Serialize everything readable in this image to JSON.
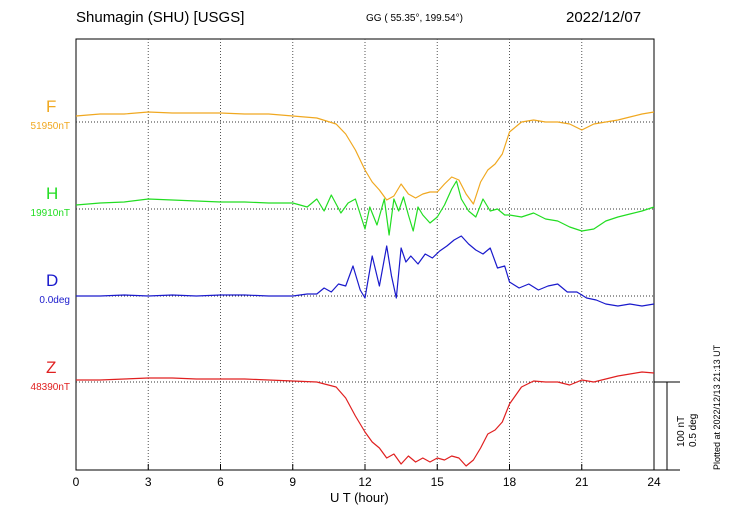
{
  "header": {
    "station": "Shumagin (SHU)  [USGS]",
    "coords": "GG ( 55.35°, 199.54°)",
    "date": "2022/12/07",
    "plotted": "Plotted at 2022/12/13 21:13 UT"
  },
  "scale": {
    "nt": "100 nT",
    "deg": "0.5 deg"
  },
  "chart_data": {
    "type": "line",
    "xlabel": "U T (hour)",
    "xlim": [
      0,
      24
    ],
    "xticks": [
      0,
      3,
      6,
      9,
      12,
      15,
      18,
      21,
      24
    ],
    "grid": true,
    "series": [
      {
        "name": "F",
        "baseline_label": "51950nT",
        "color": "#f0a820",
        "x": [
          0,
          1,
          2,
          3,
          4,
          5,
          6,
          7,
          8,
          9,
          10,
          10.8,
          11.2,
          11.6,
          12,
          12.3,
          12.6,
          12.9,
          13.2,
          13.5,
          13.8,
          14.1,
          14.4,
          14.7,
          15,
          15.3,
          15.6,
          15.9,
          16.2,
          16.5,
          16.8,
          17.1,
          17.4,
          17.7,
          18,
          18.5,
          19,
          19.5,
          20,
          20.5,
          21,
          21.5,
          22,
          22.5,
          23,
          23.5,
          24
        ],
        "values": [
          6,
          8,
          8,
          10,
          9,
          9,
          9,
          8,
          8,
          6,
          4,
          -2,
          -12,
          -28,
          -48,
          -60,
          -68,
          -78,
          -74,
          -62,
          -72,
          -76,
          -72,
          -70,
          -70,
          -62,
          -55,
          -58,
          -72,
          -82,
          -60,
          -48,
          -42,
          -32,
          -10,
          0,
          2,
          0,
          0,
          -2,
          -8,
          -2,
          0,
          2,
          5,
          8,
          10
        ]
      },
      {
        "name": "H",
        "baseline_label": "19910nT",
        "color": "#22dd22",
        "x": [
          0,
          1,
          2,
          3,
          4,
          5,
          6,
          7,
          8,
          9,
          9.6,
          10,
          10.3,
          10.6,
          11,
          11.3,
          11.6,
          11.8,
          12,
          12.2,
          12.5,
          12.8,
          13,
          13.2,
          13.4,
          13.6,
          13.8,
          14,
          14.2,
          14.4,
          14.7,
          15,
          15.3,
          15.6,
          15.8,
          16,
          16.3,
          16.6,
          16.9,
          17.2,
          17.5,
          17.8,
          18,
          18.5,
          19,
          19.5,
          20,
          20.5,
          21,
          21.5,
          22,
          22.5,
          23,
          23.5,
          24
        ],
        "values": [
          4,
          6,
          7,
          10,
          9,
          8,
          7,
          7,
          6,
          6,
          2,
          10,
          -2,
          14,
          -4,
          6,
          10,
          -5,
          -20,
          2,
          -16,
          10,
          -26,
          10,
          -2,
          12,
          -6,
          -22,
          2,
          -6,
          -14,
          -8,
          4,
          20,
          28,
          10,
          -2,
          -8,
          10,
          -2,
          0,
          -6,
          -6,
          -8,
          -4,
          -10,
          -12,
          -18,
          -22,
          -20,
          -12,
          -8,
          -5,
          -2,
          2
        ]
      },
      {
        "name": "D",
        "baseline_label": "0.0deg",
        "color": "#1a1acc",
        "x": [
          0,
          1,
          2,
          3,
          4,
          5,
          6,
          7,
          8,
          9,
          9.6,
          10,
          10.3,
          10.6,
          10.9,
          11.2,
          11.5,
          11.8,
          12,
          12.3,
          12.6,
          12.9,
          13.1,
          13.3,
          13.5,
          13.7,
          13.9,
          14.2,
          14.5,
          14.8,
          15.1,
          15.4,
          15.7,
          16,
          16.3,
          16.6,
          16.9,
          17.2,
          17.5,
          17.8,
          18,
          18.4,
          18.8,
          19.2,
          19.6,
          20,
          20.4,
          20.8,
          21.2,
          21.6,
          22,
          22.5,
          23,
          23.5,
          24
        ],
        "values": [
          0,
          0,
          1,
          0,
          1,
          0,
          1,
          1,
          0,
          0,
          2,
          2,
          8,
          4,
          12,
          10,
          30,
          6,
          -2,
          40,
          10,
          50,
          20,
          -2,
          48,
          34,
          40,
          32,
          42,
          38,
          45,
          50,
          56,
          60,
          52,
          46,
          42,
          48,
          28,
          30,
          14,
          8,
          12,
          6,
          10,
          12,
          4,
          4,
          -2,
          -4,
          -8,
          -10,
          -8,
          -10,
          -8
        ]
      },
      {
        "name": "Z",
        "baseline_label": "48390nT",
        "color": "#e02020",
        "x": [
          0,
          1,
          2,
          3,
          4,
          5,
          6,
          7,
          8,
          9,
          10,
          10.8,
          11.2,
          11.6,
          12,
          12.3,
          12.6,
          12.9,
          13.2,
          13.5,
          13.8,
          14.1,
          14.4,
          14.7,
          15,
          15.3,
          15.6,
          15.9,
          16.2,
          16.5,
          16.8,
          17.1,
          17.4,
          17.7,
          18,
          18.5,
          19,
          19.5,
          20,
          20.5,
          21,
          21.5,
          22,
          22.5,
          23,
          23.5,
          24
        ],
        "values": [
          2,
          2,
          3,
          4,
          4,
          3,
          3,
          3,
          2,
          1,
          0,
          -5,
          -16,
          -34,
          -50,
          -60,
          -66,
          -76,
          -72,
          -82,
          -74,
          -80,
          -76,
          -80,
          -76,
          -78,
          -74,
          -76,
          -84,
          -78,
          -66,
          -52,
          -48,
          -40,
          -22,
          -5,
          1,
          0,
          0,
          -3,
          2,
          0,
          3,
          6,
          8,
          10,
          9
        ]
      }
    ]
  }
}
